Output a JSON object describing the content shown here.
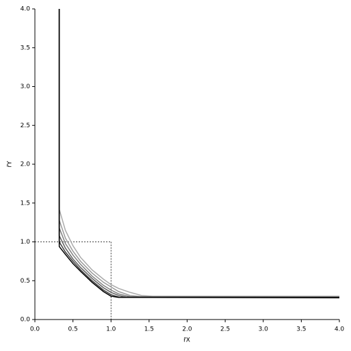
{
  "chart_data": {
    "type": "line",
    "x_label": "r̄X",
    "y_label": "r̄Y",
    "xlim": [
      0,
      4
    ],
    "ylim": [
      0,
      4
    ],
    "xticks": [
      {
        "value": 0,
        "label": "0.0"
      },
      0.5,
      {
        "value": 1,
        "label": "1.0"
      },
      1.5,
      {
        "value": 2,
        "label": "2.0"
      },
      2.5,
      {
        "value": 3,
        "label": "3.0"
      },
      3.5,
      {
        "value": 4,
        "label": "4.0"
      }
    ],
    "yticks": [
      {
        "value": 0,
        "label": "0.0"
      },
      0.5,
      {
        "value": 1,
        "label": "1.0"
      },
      1.5,
      {
        "value": 2,
        "label": "2.0"
      },
      2.5,
      {
        "value": 3,
        "label": "3.0"
      },
      3.5,
      {
        "value": 4,
        "label": "4.0"
      }
    ],
    "reference_lines": {
      "x": 1,
      "y": 1,
      "color": "#000000"
    },
    "series": [
      {
        "color": "#aaaaaa",
        "x": [
          0.32,
          0.32,
          0.4,
          0.5,
          0.6,
          0.75,
          0.9,
          1.0,
          1.1,
          1.25,
          1.4,
          1.55,
          4
        ],
        "values": [
          4,
          1.42,
          1.15,
          0.95,
          0.8,
          0.64,
          0.52,
          0.45,
          0.4,
          0.35,
          0.31,
          0.3,
          0.3
        ]
      },
      {
        "color": "#999999",
        "x": [
          0.32,
          0.32,
          0.4,
          0.5,
          0.6,
          0.75,
          0.9,
          1.0,
          1.1,
          1.25,
          1.4,
          4
        ],
        "values": [
          4,
          1.28,
          1.05,
          0.88,
          0.75,
          0.6,
          0.48,
          0.42,
          0.36,
          0.31,
          0.295,
          0.295
        ]
      },
      {
        "color": "#808080",
        "x": [
          0.32,
          0.32,
          0.4,
          0.5,
          0.6,
          0.75,
          0.9,
          1.0,
          1.1,
          1.25,
          4
        ],
        "values": [
          4,
          1.18,
          0.98,
          0.83,
          0.71,
          0.56,
          0.44,
          0.38,
          0.33,
          0.295,
          0.29
        ]
      },
      {
        "color": "#606060",
        "x": [
          0.32,
          0.32,
          0.4,
          0.5,
          0.6,
          0.75,
          0.9,
          1.0,
          1.1,
          1.2,
          4
        ],
        "values": [
          4,
          1.08,
          0.92,
          0.78,
          0.67,
          0.53,
          0.41,
          0.35,
          0.31,
          0.29,
          0.29
        ]
      },
      {
        "color": "#404040",
        "x": [
          0.32,
          0.32,
          0.4,
          0.5,
          0.6,
          0.75,
          0.9,
          1.0,
          1.1,
          4
        ],
        "values": [
          4,
          1.0,
          0.87,
          0.75,
          0.64,
          0.5,
          0.38,
          0.32,
          0.29,
          0.285
        ]
      },
      {
        "color": "#000000",
        "x": [
          0.32,
          0.32,
          0.4,
          0.5,
          0.6,
          0.75,
          0.9,
          1.0,
          1.1,
          4
        ],
        "values": [
          4,
          0.94,
          0.84,
          0.72,
          0.62,
          0.48,
          0.36,
          0.3,
          0.285,
          0.28
        ]
      }
    ]
  }
}
